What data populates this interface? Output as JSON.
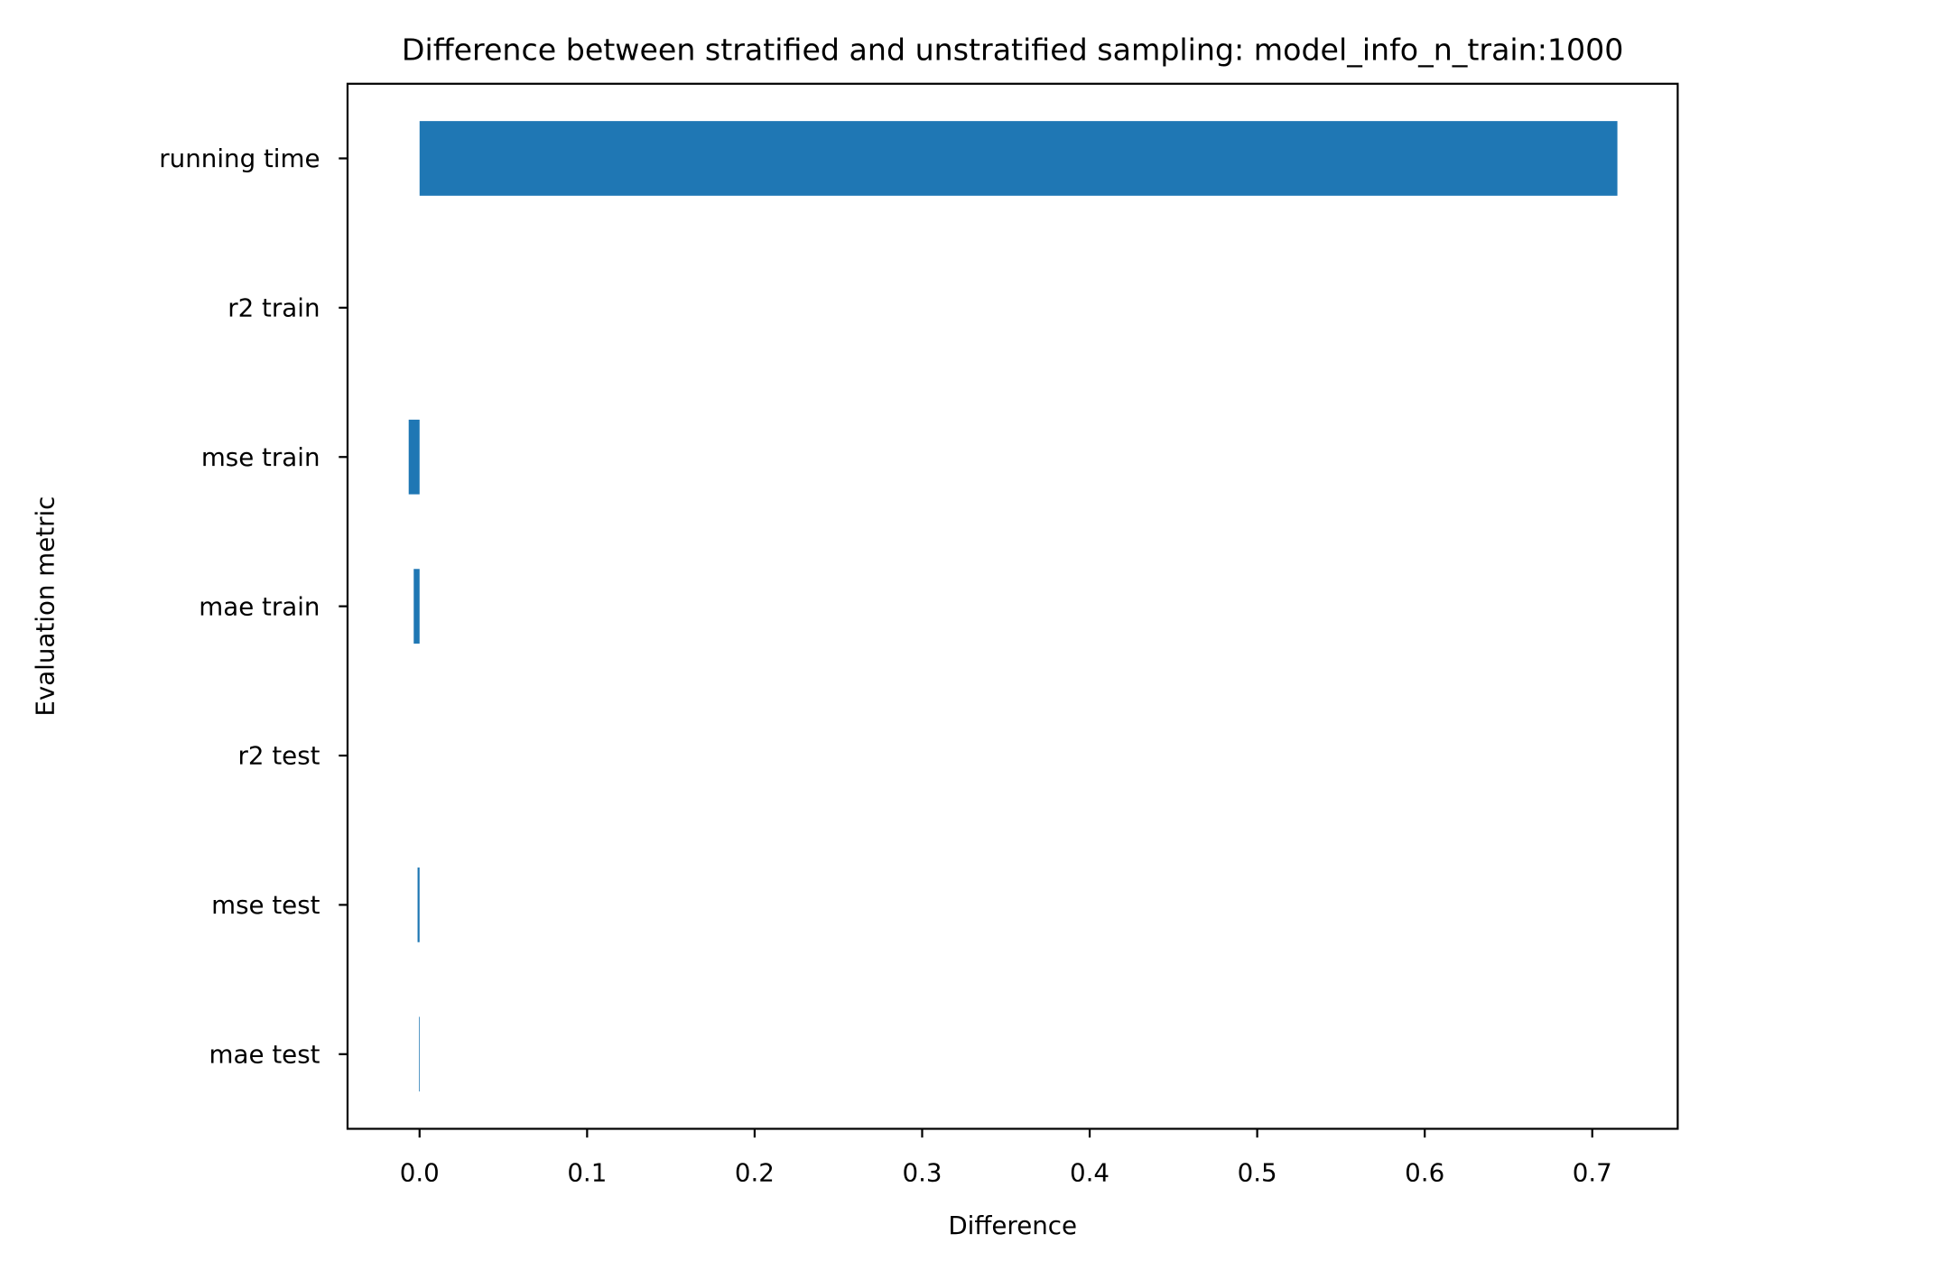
{
  "chart_data": {
    "type": "bar",
    "orientation": "horizontal",
    "title": "Difference between stratified and unstratified sampling: model_info_n_train:1000",
    "xlabel": "Difference",
    "ylabel": "Evaluation metric",
    "categories": [
      "running time",
      "r2 train",
      "mse train",
      "mae train",
      "r2 test",
      "mse test",
      "mae test"
    ],
    "values": [
      0.715,
      0.0,
      -0.0065,
      -0.0035,
      0.0,
      -0.0012,
      -0.0004
    ],
    "xlim": [
      -0.043,
      0.751
    ],
    "xticks": [
      "0.0",
      "0.1",
      "0.2",
      "0.3",
      "0.4",
      "0.5",
      "0.6",
      "0.7"
    ],
    "xtick_values": [
      0.0,
      0.1,
      0.2,
      0.3,
      0.4,
      0.5,
      0.6,
      0.7
    ],
    "bar_color": "#1f77b4",
    "grid": false
  }
}
